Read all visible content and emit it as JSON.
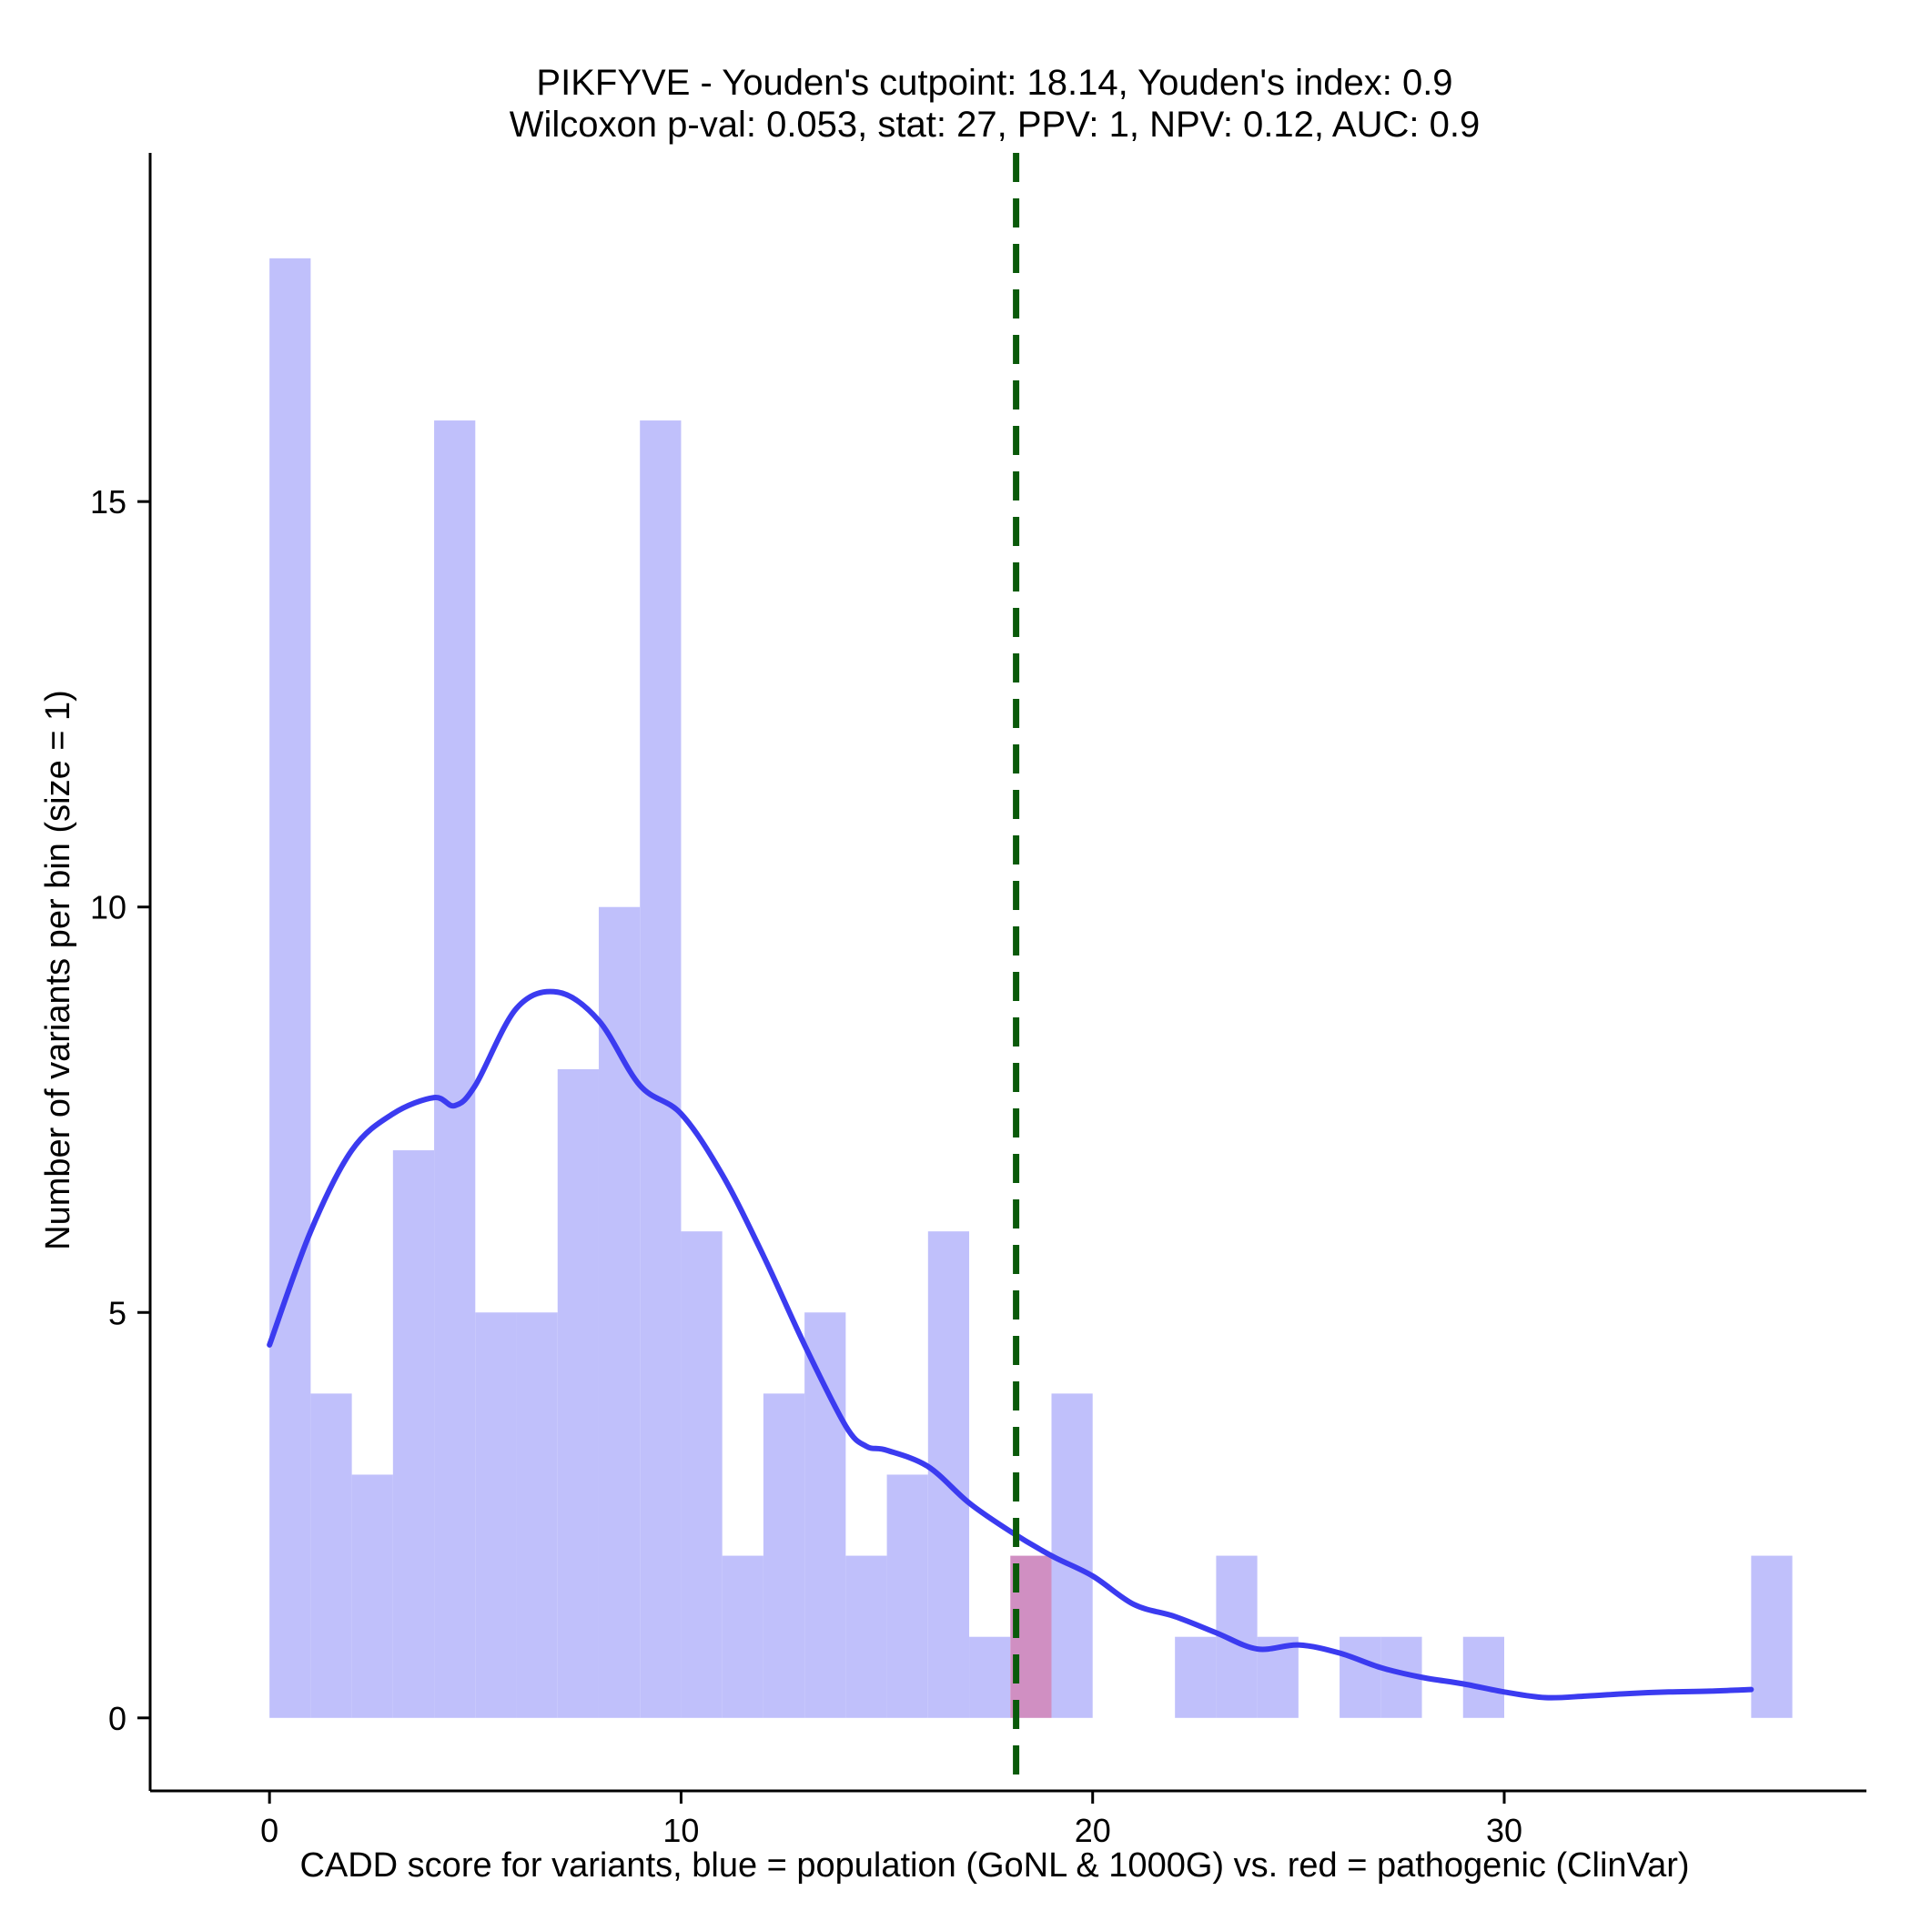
{
  "chart_data": {
    "type": "bar",
    "title": "PIKFYVE - Youden's cutpoint: 18.14, Youden's index: 0.9",
    "subtitle": "Wilcoxon p-val: 0.053, stat: 27, PPV: 1, NPV: 0.12, AUC: 0.9",
    "xlabel": "CADD score for variants, blue = population (GoNL & 1000G) vs. red = pathogenic (ClinVar)",
    "ylabel": "Number of variants per bin (size = 1)",
    "xlim": [
      -2.9,
      38.8
    ],
    "ylim": [
      -0.9,
      19.3
    ],
    "x_ticks": [
      0,
      10,
      20,
      30
    ],
    "x_tick_labels": [
      "0",
      "10",
      "20",
      "30"
    ],
    "y_ticks": [
      0,
      5,
      10,
      15
    ],
    "y_tick_labels": [
      "0",
      "5",
      "10",
      "15"
    ],
    "bin_size": 1,
    "cutpoint": 18.14,
    "colors": {
      "population_bar": "#c0c0fb",
      "pathogenic_bar": "#d08fc2",
      "density_line": "#3b3bf0",
      "cutpoint_line": "#0a5a0a",
      "axis": "#000000"
    },
    "series": [
      {
        "name": "population (GoNL & 1000G)",
        "bins": [
          {
            "x": 0,
            "count": 18
          },
          {
            "x": 1,
            "count": 4
          },
          {
            "x": 2,
            "count": 3
          },
          {
            "x": 3,
            "count": 7
          },
          {
            "x": 4,
            "count": 16
          },
          {
            "x": 5,
            "count": 5
          },
          {
            "x": 6,
            "count": 5
          },
          {
            "x": 7,
            "count": 8
          },
          {
            "x": 8,
            "count": 10
          },
          {
            "x": 9,
            "count": 16
          },
          {
            "x": 10,
            "count": 6
          },
          {
            "x": 11,
            "count": 2
          },
          {
            "x": 12,
            "count": 4
          },
          {
            "x": 13,
            "count": 5
          },
          {
            "x": 14,
            "count": 2
          },
          {
            "x": 15,
            "count": 3
          },
          {
            "x": 16,
            "count": 6
          },
          {
            "x": 17,
            "count": 1
          },
          {
            "x": 19,
            "count": 4
          },
          {
            "x": 22,
            "count": 1
          },
          {
            "x": 23,
            "count": 2
          },
          {
            "x": 24,
            "count": 1
          },
          {
            "x": 26,
            "count": 1
          },
          {
            "x": 27,
            "count": 1
          },
          {
            "x": 29,
            "count": 1
          },
          {
            "x": 36,
            "count": 2
          }
        ]
      },
      {
        "name": "pathogenic (ClinVar)",
        "bins": [
          {
            "x": 18,
            "count": 2
          }
        ]
      }
    ],
    "density_curve": {
      "name": "population density (scaled)",
      "x": [
        0,
        1,
        2,
        3,
        4,
        4.5,
        5,
        6,
        7,
        8,
        9,
        10,
        11,
        12,
        13,
        14,
        14.5,
        15,
        16,
        17,
        18,
        19,
        20,
        21,
        22,
        23,
        24,
        25,
        26,
        27,
        28,
        29,
        30,
        31,
        32,
        33,
        34,
        35,
        36
      ],
      "y": [
        4.6,
        6.0,
        7.0,
        7.45,
        7.65,
        7.55,
        7.8,
        8.75,
        8.95,
        8.6,
        7.8,
        7.45,
        6.7,
        5.7,
        4.6,
        3.6,
        3.35,
        3.3,
        3.1,
        2.65,
        2.3,
        2.0,
        1.75,
        1.4,
        1.25,
        1.05,
        0.85,
        0.9,
        0.8,
        0.62,
        0.5,
        0.42,
        0.32,
        0.25,
        0.27,
        0.3,
        0.32,
        0.33,
        0.35
      ]
    }
  }
}
